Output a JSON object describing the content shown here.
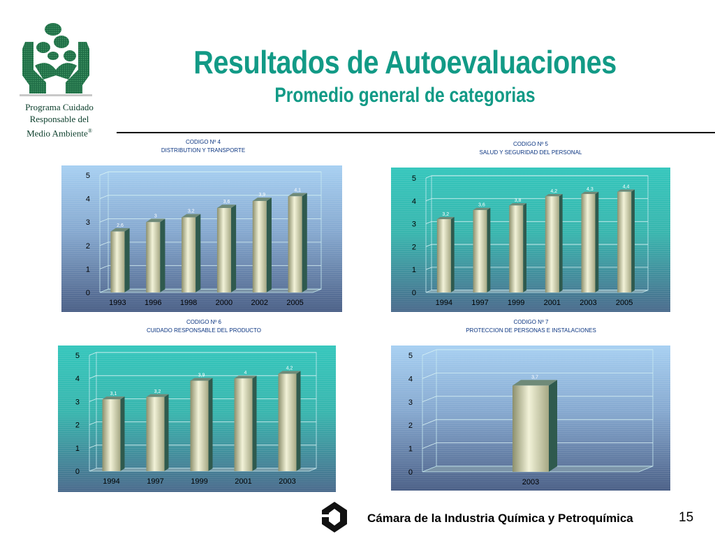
{
  "header": {
    "title": "Resultados de Autoevaluaciones",
    "subtitle": "Promedio general de categorias",
    "program_line1": "Programa Cuidado",
    "program_line2": "Responsable del",
    "program_line3": "Medio Ambiente",
    "program_mark": "®"
  },
  "footer": {
    "org": "Cámara de la Industria Química y Petroquímica",
    "page": "15"
  },
  "colors": {
    "accent": "#129a86",
    "caption": "#0a3480",
    "bar_face": "#dcdcb8",
    "bar_side": "#2f5a4e"
  },
  "chart_data": [
    {
      "type": "bar",
      "title": "CODIGO Nº 4",
      "subtitle": "DISTRIBUTION Y TRANSPORTE",
      "categories": [
        "1993",
        "1996",
        "1998",
        "2000",
        "2002",
        "2005"
      ],
      "values": [
        2.6,
        3,
        3.2,
        3.6,
        3.9,
        4.1
      ],
      "labels": [
        "2,6",
        "3",
        "3,2",
        "3,6",
        "3,9",
        "4,1"
      ],
      "yticks": [
        "0",
        "1",
        "2",
        "3",
        "4",
        "5"
      ],
      "ylim": [
        0,
        5
      ],
      "grid": true,
      "background": "blue"
    },
    {
      "type": "bar",
      "title": "CODIGO Nº 5",
      "subtitle": "SALUD Y SEGURIDAD DEL PERSONAL",
      "categories": [
        "1994",
        "1997",
        "1999",
        "2001",
        "2003",
        "2005"
      ],
      "values": [
        3.2,
        3.6,
        3.8,
        4.2,
        4.3,
        4.4
      ],
      "labels": [
        "3,2",
        "3,6",
        "3,8",
        "4,2",
        "4,3",
        "4,4"
      ],
      "yticks": [
        "0",
        "1",
        "2",
        "3",
        "4",
        "5"
      ],
      "ylim": [
        0,
        5
      ],
      "grid": true,
      "background": "teal"
    },
    {
      "type": "bar",
      "title": "CODIGO Nº 6",
      "subtitle": "CUIDADO RESPONSABLE DEL PRODUCTO",
      "categories": [
        "1994",
        "1997",
        "1999",
        "2001",
        "2003"
      ],
      "values": [
        3.1,
        3.2,
        3.9,
        4,
        4.2
      ],
      "labels": [
        "3,1",
        "3,2",
        "3,9",
        "4",
        "4,2"
      ],
      "yticks": [
        "0",
        "1",
        "2",
        "3",
        "4",
        "5"
      ],
      "ylim": [
        0,
        5
      ],
      "grid": true,
      "background": "teal"
    },
    {
      "type": "bar",
      "title": "CODIGO Nº 7",
      "subtitle": "PROTECCION DE PERSONAS E INSTALACIONES",
      "categories": [
        "2003"
      ],
      "values": [
        3.7
      ],
      "labels": [
        "3,7"
      ],
      "yticks": [
        "0",
        "1",
        "2",
        "3",
        "4",
        "5"
      ],
      "ylim": [
        0,
        5
      ],
      "grid": true,
      "background": "blue"
    }
  ]
}
